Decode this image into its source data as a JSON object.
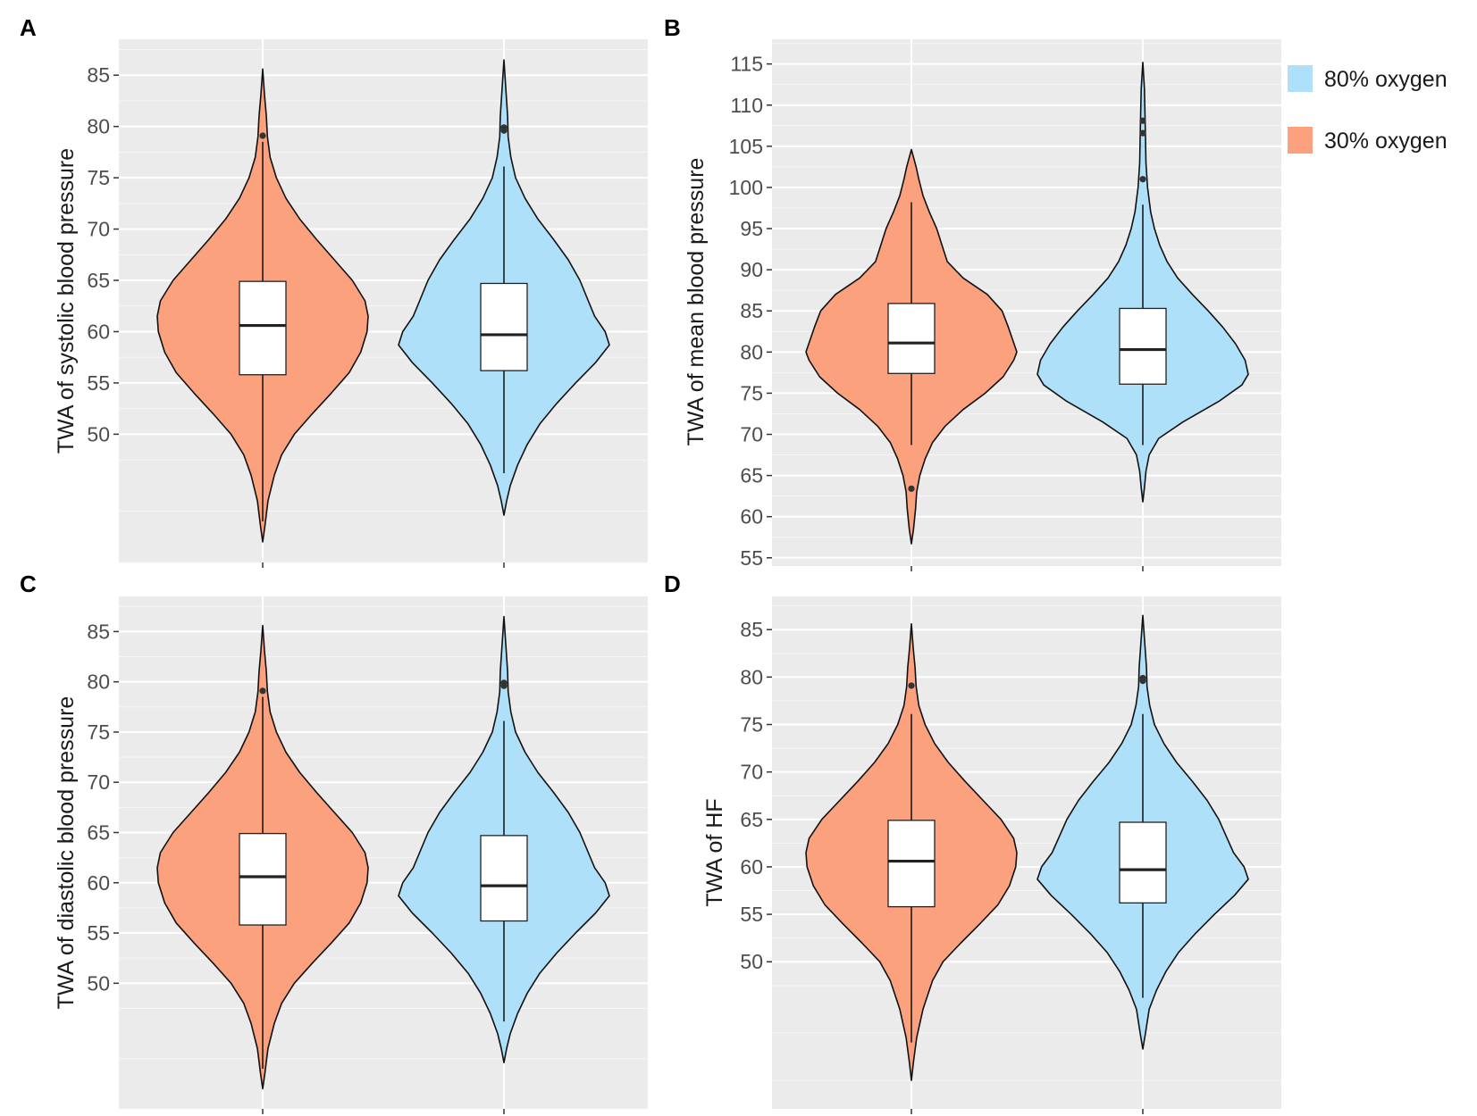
{
  "figure_title": "",
  "legend": {
    "items": [
      {
        "label": "80% oxygen",
        "color": "#AEE0FA"
      },
      {
        "label": "30% oxygen",
        "color": "#FBA17D"
      }
    ]
  },
  "chart_data": [
    {
      "panel": "A",
      "type": "violin",
      "ylabel": "TWA of systolic blood pressure",
      "xlabel": "",
      "ylim": [
        37.5,
        88.5
      ],
      "yticks": [
        50,
        55,
        60,
        65,
        70,
        75,
        80,
        85
      ],
      "grid": true,
      "groups": [
        {
          "name": "30% oxygen",
          "color": "#FBA17D",
          "min": 39.5,
          "max": 85.6,
          "q1": 55.8,
          "median": 60.6,
          "q3": 64.9,
          "whisker_low": 41.5,
          "whisker_high": 78.5,
          "outliers": [
            79.1
          ],
          "density": [
            [
              39.5,
              0
            ],
            [
              41,
              0.02
            ],
            [
              43.5,
              0.05
            ],
            [
              46,
              0.11
            ],
            [
              48,
              0.18
            ],
            [
              50,
              0.3
            ],
            [
              52,
              0.47
            ],
            [
              54,
              0.65
            ],
            [
              56,
              0.82
            ],
            [
              58,
              0.93
            ],
            [
              60,
              0.99
            ],
            [
              61.5,
              1.0
            ],
            [
              63,
              0.97
            ],
            [
              65,
              0.85
            ],
            [
              67,
              0.68
            ],
            [
              69,
              0.51
            ],
            [
              71,
              0.35
            ],
            [
              73,
              0.22
            ],
            [
              75,
              0.13
            ],
            [
              77,
              0.07
            ],
            [
              79,
              0.045
            ],
            [
              81,
              0.035
            ],
            [
              83,
              0.018
            ],
            [
              85.6,
              0
            ]
          ]
        },
        {
          "name": "80% oxygen",
          "color": "#AEE0FA",
          "min": 42.1,
          "max": 86.5,
          "q1": 56.2,
          "median": 59.7,
          "q3": 64.7,
          "whisker_low": 46.2,
          "whisker_high": 76.1,
          "outliers": [
            79.6,
            79.9
          ],
          "density": [
            [
              42.1,
              0
            ],
            [
              43.5,
              0.025
            ],
            [
              45,
              0.06
            ],
            [
              47,
              0.13
            ],
            [
              49,
              0.22
            ],
            [
              51,
              0.34
            ],
            [
              53,
              0.5
            ],
            [
              55,
              0.68
            ],
            [
              57,
              0.87
            ],
            [
              58.7,
              1.0
            ],
            [
              60,
              0.96
            ],
            [
              61.5,
              0.86
            ],
            [
              63,
              0.8
            ],
            [
              65,
              0.72
            ],
            [
              67,
              0.61
            ],
            [
              69,
              0.47
            ],
            [
              71,
              0.32
            ],
            [
              73,
              0.2
            ],
            [
              75,
              0.11
            ],
            [
              77,
              0.065
            ],
            [
              79,
              0.04
            ],
            [
              81,
              0.035
            ],
            [
              83,
              0.022
            ],
            [
              86.5,
              0
            ]
          ]
        }
      ]
    },
    {
      "panel": "B",
      "type": "violin",
      "ylabel": "TWA of mean blood pressure",
      "xlabel": "",
      "ylim": [
        54,
        118
      ],
      "yticks": [
        55,
        60,
        65,
        70,
        75,
        80,
        85,
        90,
        95,
        100,
        105,
        110,
        115
      ],
      "grid": true,
      "groups": [
        {
          "name": "30% oxygen",
          "color": "#FBA17D",
          "min": 56.7,
          "max": 104.6,
          "q1": 77.4,
          "median": 81.1,
          "q3": 85.9,
          "whisker_low": 68.7,
          "whisker_high": 98.2,
          "outliers": [
            63.4
          ],
          "density": [
            [
              56.7,
              0
            ],
            [
              58.5,
              0.02
            ],
            [
              61,
              0.04
            ],
            [
              63,
              0.05
            ],
            [
              65,
              0.08
            ],
            [
              67,
              0.13
            ],
            [
              69,
              0.2
            ],
            [
              71,
              0.32
            ],
            [
              73,
              0.49
            ],
            [
              75,
              0.7
            ],
            [
              77,
              0.87
            ],
            [
              79,
              0.97
            ],
            [
              80,
              1.0
            ],
            [
              81.5,
              0.96
            ],
            [
              83,
              0.92
            ],
            [
              85,
              0.86
            ],
            [
              87,
              0.72
            ],
            [
              89,
              0.49
            ],
            [
              91,
              0.34
            ],
            [
              93,
              0.29
            ],
            [
              95,
              0.24
            ],
            [
              97,
              0.17
            ],
            [
              99,
              0.11
            ],
            [
              101,
              0.07
            ],
            [
              102.5,
              0.045
            ],
            [
              104.6,
              0
            ]
          ]
        },
        {
          "name": "80% oxygen",
          "color": "#AEE0FA",
          "min": 61.8,
          "max": 115.2,
          "q1": 76.1,
          "median": 80.3,
          "q3": 85.3,
          "whisker_low": 68.7,
          "whisker_high": 97.9,
          "outliers": [
            101.0,
            106.6,
            108.1
          ],
          "density": [
            [
              61.8,
              0
            ],
            [
              63.5,
              0.015
            ],
            [
              65.5,
              0.03
            ],
            [
              67.5,
              0.06
            ],
            [
              69.5,
              0.15
            ],
            [
              71.5,
              0.38
            ],
            [
              74,
              0.72
            ],
            [
              76,
              0.94
            ],
            [
              77.3,
              1.0
            ],
            [
              79,
              0.97
            ],
            [
              81,
              0.88
            ],
            [
              83,
              0.76
            ],
            [
              85,
              0.62
            ],
            [
              87,
              0.47
            ],
            [
              89,
              0.33
            ],
            [
              91,
              0.23
            ],
            [
              93,
              0.16
            ],
            [
              95,
              0.11
            ],
            [
              97,
              0.075
            ],
            [
              100,
              0.045
            ],
            [
              103,
              0.03
            ],
            [
              106,
              0.025
            ],
            [
              109,
              0.02
            ],
            [
              112,
              0.015
            ],
            [
              115.2,
              0
            ]
          ]
        }
      ]
    },
    {
      "panel": "C",
      "type": "violin",
      "ylabel": "TWA of diastolic blood pressure",
      "xlabel": "",
      "ylim": [
        37.5,
        88.5
      ],
      "yticks": [
        50,
        55,
        60,
        65,
        70,
        75,
        80,
        85
      ],
      "grid": true,
      "groups": [
        {
          "name": "30% oxygen",
          "color": "#FBA17D",
          "min": 39.5,
          "max": 85.6,
          "q1": 55.8,
          "median": 60.6,
          "q3": 64.9,
          "whisker_low": 41.5,
          "whisker_high": 78.5,
          "outliers": [
            79.1
          ],
          "density": [
            [
              39.5,
              0
            ],
            [
              41,
              0.02
            ],
            [
              43.5,
              0.05
            ],
            [
              46,
              0.11
            ],
            [
              48,
              0.18
            ],
            [
              50,
              0.3
            ],
            [
              52,
              0.47
            ],
            [
              54,
              0.65
            ],
            [
              56,
              0.82
            ],
            [
              58,
              0.93
            ],
            [
              60,
              0.99
            ],
            [
              61.5,
              1.0
            ],
            [
              63,
              0.97
            ],
            [
              65,
              0.85
            ],
            [
              67,
              0.68
            ],
            [
              69,
              0.51
            ],
            [
              71,
              0.35
            ],
            [
              73,
              0.22
            ],
            [
              75,
              0.13
            ],
            [
              77,
              0.07
            ],
            [
              79,
              0.045
            ],
            [
              81,
              0.035
            ],
            [
              83,
              0.018
            ],
            [
              85.6,
              0
            ]
          ]
        },
        {
          "name": "80% oxygen",
          "color": "#AEE0FA",
          "min": 42.1,
          "max": 86.5,
          "q1": 56.2,
          "median": 59.7,
          "q3": 64.7,
          "whisker_low": 46.2,
          "whisker_high": 76.1,
          "outliers": [
            79.6,
            79.9
          ],
          "density": [
            [
              42.1,
              0
            ],
            [
              43.5,
              0.025
            ],
            [
              45,
              0.06
            ],
            [
              47,
              0.13
            ],
            [
              49,
              0.22
            ],
            [
              51,
              0.34
            ],
            [
              53,
              0.5
            ],
            [
              55,
              0.68
            ],
            [
              57,
              0.87
            ],
            [
              58.7,
              1.0
            ],
            [
              60,
              0.96
            ],
            [
              61.5,
              0.86
            ],
            [
              63,
              0.8
            ],
            [
              65,
              0.72
            ],
            [
              67,
              0.61
            ],
            [
              69,
              0.47
            ],
            [
              71,
              0.32
            ],
            [
              73,
              0.2
            ],
            [
              75,
              0.11
            ],
            [
              77,
              0.065
            ],
            [
              79,
              0.04
            ],
            [
              81,
              0.035
            ],
            [
              83,
              0.022
            ],
            [
              86.5,
              0
            ]
          ]
        }
      ]
    },
    {
      "panel": "D",
      "type": "violin",
      "ylabel": "TWA of HF",
      "xlabel": "",
      "ylim": [
        34.5,
        88.5
      ],
      "yticks": [
        50,
        55,
        60,
        65,
        70,
        75,
        80,
        85
      ],
      "grid": true,
      "groups": [
        {
          "name": "30% oxygen",
          "color": "#FBA17D",
          "min": 37.5,
          "max": 85.6,
          "q1": 55.8,
          "median": 60.6,
          "q3": 64.9,
          "whisker_low": 41.5,
          "whisker_high": 76.1,
          "outliers": [
            79.1
          ],
          "density": [
            [
              37.5,
              0
            ],
            [
              39.5,
              0.02
            ],
            [
              42,
              0.05
            ],
            [
              45,
              0.11
            ],
            [
              48,
              0.2
            ],
            [
              50,
              0.3
            ],
            [
              52,
              0.47
            ],
            [
              54,
              0.65
            ],
            [
              56,
              0.82
            ],
            [
              58,
              0.93
            ],
            [
              60,
              0.99
            ],
            [
              61.5,
              1.0
            ],
            [
              63,
              0.97
            ],
            [
              65,
              0.85
            ],
            [
              67,
              0.68
            ],
            [
              69,
              0.51
            ],
            [
              71,
              0.35
            ],
            [
              73,
              0.22
            ],
            [
              75,
              0.13
            ],
            [
              77,
              0.07
            ],
            [
              79,
              0.045
            ],
            [
              81,
              0.035
            ],
            [
              83,
              0.018
            ],
            [
              85.6,
              0
            ]
          ]
        },
        {
          "name": "80% oxygen",
          "color": "#AEE0FA",
          "min": 40.8,
          "max": 86.5,
          "q1": 56.2,
          "median": 59.7,
          "q3": 64.7,
          "whisker_low": 46.2,
          "whisker_high": 76.1,
          "outliers": [
            79.6,
            79.9
          ],
          "density": [
            [
              40.8,
              0
            ],
            [
              42.5,
              0.025
            ],
            [
              45,
              0.06
            ],
            [
              47,
              0.13
            ],
            [
              49,
              0.22
            ],
            [
              51,
              0.34
            ],
            [
              53,
              0.5
            ],
            [
              55,
              0.68
            ],
            [
              57,
              0.87
            ],
            [
              58.7,
              1.0
            ],
            [
              60,
              0.96
            ],
            [
              61.5,
              0.86
            ],
            [
              63,
              0.8
            ],
            [
              65,
              0.72
            ],
            [
              67,
              0.61
            ],
            [
              69,
              0.47
            ],
            [
              71,
              0.32
            ],
            [
              73,
              0.2
            ],
            [
              75,
              0.11
            ],
            [
              77,
              0.065
            ],
            [
              79,
              0.04
            ],
            [
              81,
              0.035
            ],
            [
              83,
              0.022
            ],
            [
              86.5,
              0
            ]
          ]
        }
      ]
    }
  ]
}
